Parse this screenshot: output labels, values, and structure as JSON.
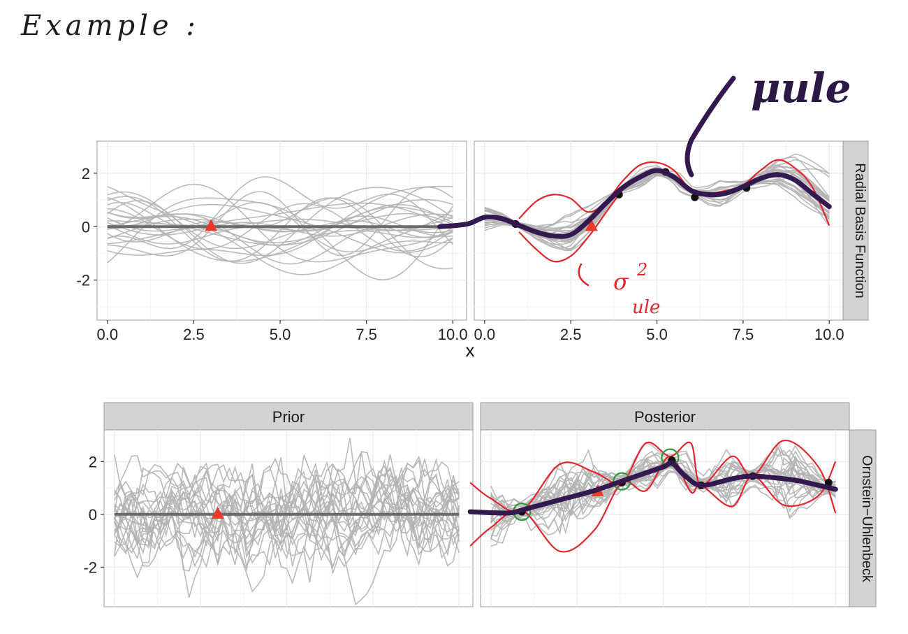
{
  "annotations": {
    "example_label": "Example :",
    "mu_label": "μule",
    "sigma_label": "σ",
    "sigma_sup": "2",
    "sigma_sub": "ule"
  },
  "colors": {
    "sample": "#b3b3b3",
    "mean": "#6b6b6b",
    "panel_bg": "#ffffff",
    "strip": "#d3d3d3",
    "grid": "#ebebeb",
    "triangle": "#e8392b",
    "point": "#111111",
    "red_envelope": "#e3262e",
    "purple_mean": "#33194f",
    "green_circle": "#2e9a3a"
  },
  "chart_data": [
    {
      "type": "line",
      "facet_row_label": "Radial Basis Function",
      "panels": [
        {
          "name": "Prior",
          "mean": {
            "x": [
              0,
              10
            ],
            "y": [
              0,
              0
            ]
          },
          "triangle": {
            "x": 3.0,
            "y": 0.05
          }
        },
        {
          "name": "Posterior",
          "observations": {
            "x": [
              0.9,
              3.9,
              5.25,
              6.1,
              7.6
            ],
            "y": [
              0.1,
              1.2,
              2.05,
              1.1,
              1.45
            ]
          },
          "triangle": {
            "x": 3.1,
            "y": 0.05
          },
          "handdrawn_mean": {
            "x": [
              -1.3,
              -0.5,
              0.0,
              0.5,
              1.0,
              1.5,
              2.0,
              2.5,
              3.0,
              3.5,
              4.0,
              4.5,
              5.0,
              5.5,
              6.0,
              6.5,
              7.0,
              7.5,
              8.0,
              8.5,
              9.0,
              9.5,
              10.0
            ],
            "y": [
              0.0,
              0.1,
              0.35,
              0.3,
              0.05,
              -0.2,
              -0.35,
              -0.3,
              0.2,
              0.85,
              1.45,
              1.85,
              2.1,
              1.85,
              1.35,
              1.2,
              1.25,
              1.5,
              1.8,
              1.95,
              1.75,
              1.25,
              0.75
            ]
          },
          "envelope_upper": {
            "x": [
              1.0,
              1.5,
              2.0,
              2.5,
              3.0,
              3.5,
              4.0,
              4.5,
              5.0,
              5.5,
              6.0,
              6.5,
              7.0,
              7.5,
              8.0,
              8.5,
              9.0,
              9.5,
              10.0
            ],
            "y": [
              0.3,
              0.95,
              1.2,
              1.05,
              0.55,
              0.9,
              1.7,
              2.3,
              2.4,
              2.1,
              1.35,
              1.25,
              1.35,
              1.55,
              2.1,
              2.5,
              2.2,
              1.5,
              0.05
            ]
          },
          "envelope_lower": {
            "x": [
              1.0,
              1.5,
              2.0,
              2.5,
              3.0,
              3.5,
              3.9
            ],
            "y": [
              -0.2,
              -0.85,
              -1.3,
              -1.1,
              -0.4,
              0.5,
              1.2
            ]
          }
        }
      ],
      "x_ticks": [
        "0.0",
        "2.5",
        "5.0",
        "7.5",
        "10.0"
      ],
      "y_ticks": [
        "-2",
        "0",
        "2"
      ],
      "xlim": [
        -0.3,
        10.4
      ],
      "ylim": [
        -3.5,
        3.2
      ],
      "xlabel": "x",
      "grid": true
    },
    {
      "type": "line",
      "facet_row_label": "Ornstein−Uhlenbeck",
      "panels": [
        {
          "name": "Prior",
          "mean": {
            "x": [
              0,
              10
            ],
            "y": [
              0,
              0
            ]
          },
          "triangle": {
            "x": 3.0,
            "y": 0.05
          }
        },
        {
          "name": "Posterior",
          "observations": {
            "x": [
              0.9,
              3.8,
              5.25,
              6.1,
              7.6,
              9.8
            ],
            "y": [
              0.1,
              1.2,
              2.05,
              1.1,
              1.45,
              1.2
            ]
          },
          "green_circles": {
            "x": [
              0.9,
              3.8,
              5.2
            ],
            "y": [
              0.1,
              1.25,
              2.15
            ]
          },
          "triangle": {
            "x": 3.1,
            "y": 0.9
          },
          "handdrawn_mean": {
            "x": [
              -0.6,
              0.5,
              1.0,
              2.0,
              3.0,
              4.0,
              5.0,
              5.25,
              5.6,
              6.1,
              7.0,
              7.6,
              8.5,
              9.0,
              10.0
            ],
            "y": [
              0.1,
              0.05,
              0.2,
              0.55,
              0.9,
              1.35,
              1.8,
              1.95,
              1.5,
              1.1,
              1.35,
              1.45,
              1.35,
              1.25,
              0.95
            ]
          },
          "envelope_upper": {
            "x": [
              -0.6,
              0.0,
              0.9,
              2.0,
              3.0,
              3.8,
              4.5,
              5.2,
              5.8,
              6.1,
              7.0,
              7.6,
              8.5,
              9.5,
              10.0
            ],
            "y": [
              1.2,
              0.6,
              0.15,
              1.9,
              1.6,
              1.2,
              2.7,
              2.2,
              2.7,
              1.1,
              2.2,
              1.45,
              2.8,
              1.8,
              0.05
            ]
          },
          "envelope_lower": {
            "x": [
              -0.6,
              0.0,
              0.9,
              2.0,
              3.0,
              3.8,
              4.5,
              5.2,
              5.8,
              6.1,
              7.0,
              7.6,
              8.5,
              9.5,
              10.0
            ],
            "y": [
              -1.2,
              -0.5,
              0.15,
              -1.4,
              -0.6,
              1.2,
              0.9,
              2.2,
              0.85,
              1.1,
              0.3,
              1.45,
              0.35,
              0.7,
              2.0
            ]
          }
        }
      ],
      "strip_labels": [
        "Prior",
        "Posterior"
      ],
      "y_ticks": [
        "-2",
        "0",
        "2"
      ],
      "xlim": [
        -0.3,
        10.4
      ],
      "ylim": [
        -3.5,
        3.2
      ],
      "grid": true
    }
  ]
}
